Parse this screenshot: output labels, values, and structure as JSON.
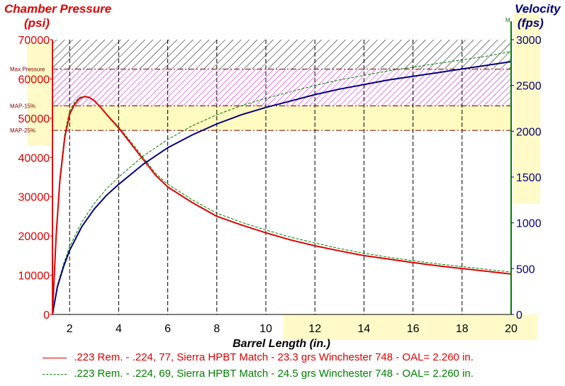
{
  "chart_data": {
    "type": "line",
    "title": "",
    "xlabel": "Barrel Length (in.)",
    "xlim": [
      1.3,
      20
    ],
    "xticks": [
      2,
      4,
      6,
      8,
      10,
      12,
      14,
      16,
      18,
      20
    ],
    "left_axis": {
      "label_line1": "Chamber Pressure",
      "label_line2": "(psi)",
      "ylim": [
        0,
        70000
      ],
      "ticks": [
        0,
        10000,
        20000,
        30000,
        40000,
        50000,
        60000,
        70000
      ],
      "color": "#e00000"
    },
    "right_axis": {
      "label_line1": "Velocity",
      "label_line2": "(fps)",
      "ylim": [
        0,
        3000
      ],
      "ticks": [
        0,
        500,
        1000,
        1500,
        2000,
        2500,
        3000
      ],
      "color": "#000080",
      "marker": "M"
    },
    "reference_lines": [
      {
        "label": "Max.Pressure",
        "value": 62500
      },
      {
        "label": "MAP-15%",
        "value": 53125
      },
      {
        "label": "MAP-25%",
        "value": 46875
      }
    ],
    "grid": true,
    "series": [
      {
        "name": ".223 Rem. - .224, 77, Sierra HPBT Match - 23.3 grs Winchester 748 - OAL= 2.260 in.",
        "color": "#e00000",
        "pressure": {
          "x": [
            1.3,
            1.45,
            1.6,
            1.8,
            2.0,
            2.2,
            2.4,
            2.6,
            2.8,
            3.0,
            3.3,
            3.6,
            4.0,
            4.5,
            5.0,
            5.5,
            6.0,
            7.0,
            8.0,
            9.0,
            10.0,
            11.0,
            12.0,
            13.0,
            14.0,
            15.0,
            16.0,
            17.0,
            18.0,
            19.0,
            20.0
          ],
          "y": [
            0,
            20000,
            34000,
            45000,
            51000,
            53500,
            55000,
            55500,
            55300,
            54500,
            52500,
            50300,
            47500,
            43500,
            39500,
            35500,
            32500,
            28500,
            25000,
            22800,
            20800,
            19000,
            17500,
            16200,
            15000,
            14100,
            13200,
            12400,
            11700,
            11000,
            10300
          ]
        },
        "velocity": {
          "x": [
            1.3,
            1.5,
            1.75,
            2.0,
            2.5,
            3.0,
            3.5,
            4.0,
            5.0,
            6.0,
            7.0,
            8.0,
            9.0,
            10.0,
            11.0,
            12.0,
            13.0,
            14.0,
            15.0,
            16.0,
            17.0,
            18.0,
            19.0,
            20.0
          ],
          "y": [
            0,
            300,
            520,
            700,
            960,
            1150,
            1300,
            1420,
            1640,
            1820,
            1960,
            2080,
            2180,
            2260,
            2330,
            2400,
            2460,
            2510,
            2560,
            2600,
            2640,
            2680,
            2720,
            2760
          ]
        }
      },
      {
        "name": ".223 Rem. - .224, 69, Sierra HPBT Match - 24.5 grs Winchester 748 - OAL= 2.260 in.",
        "color": "#008000",
        "pressure": {
          "x": [
            1.3,
            1.45,
            1.6,
            1.8,
            2.0,
            2.2,
            2.4,
            2.6,
            2.8,
            3.0,
            3.3,
            3.6,
            4.0,
            4.5,
            5.0,
            5.5,
            6.0,
            7.0,
            8.0,
            9.0,
            10.0,
            11.0,
            12.0,
            13.0,
            14.0,
            15.0,
            16.0,
            17.0,
            18.0,
            19.0,
            20.0
          ],
          "y": [
            0,
            21000,
            35000,
            46000,
            51800,
            54000,
            55300,
            55600,
            55200,
            54400,
            52500,
            50400,
            47800,
            44000,
            40000,
            36000,
            33200,
            29200,
            25800,
            23500,
            21500,
            19700,
            18200,
            16800,
            15600,
            14600,
            13700,
            12900,
            12200,
            11500,
            10800
          ]
        },
        "velocity": {
          "x": [
            1.3,
            1.5,
            1.75,
            2.0,
            2.5,
            3.0,
            3.5,
            4.0,
            5.0,
            6.0,
            7.0,
            8.0,
            9.0,
            10.0,
            11.0,
            12.0,
            13.0,
            14.0,
            15.0,
            16.0,
            17.0,
            18.0,
            19.0,
            20.0
          ],
          "y": [
            0,
            320,
            550,
            740,
            1010,
            1210,
            1370,
            1500,
            1730,
            1910,
            2060,
            2180,
            2280,
            2360,
            2430,
            2500,
            2560,
            2610,
            2660,
            2700,
            2740,
            2780,
            2820,
            2870
          ]
        }
      }
    ]
  }
}
